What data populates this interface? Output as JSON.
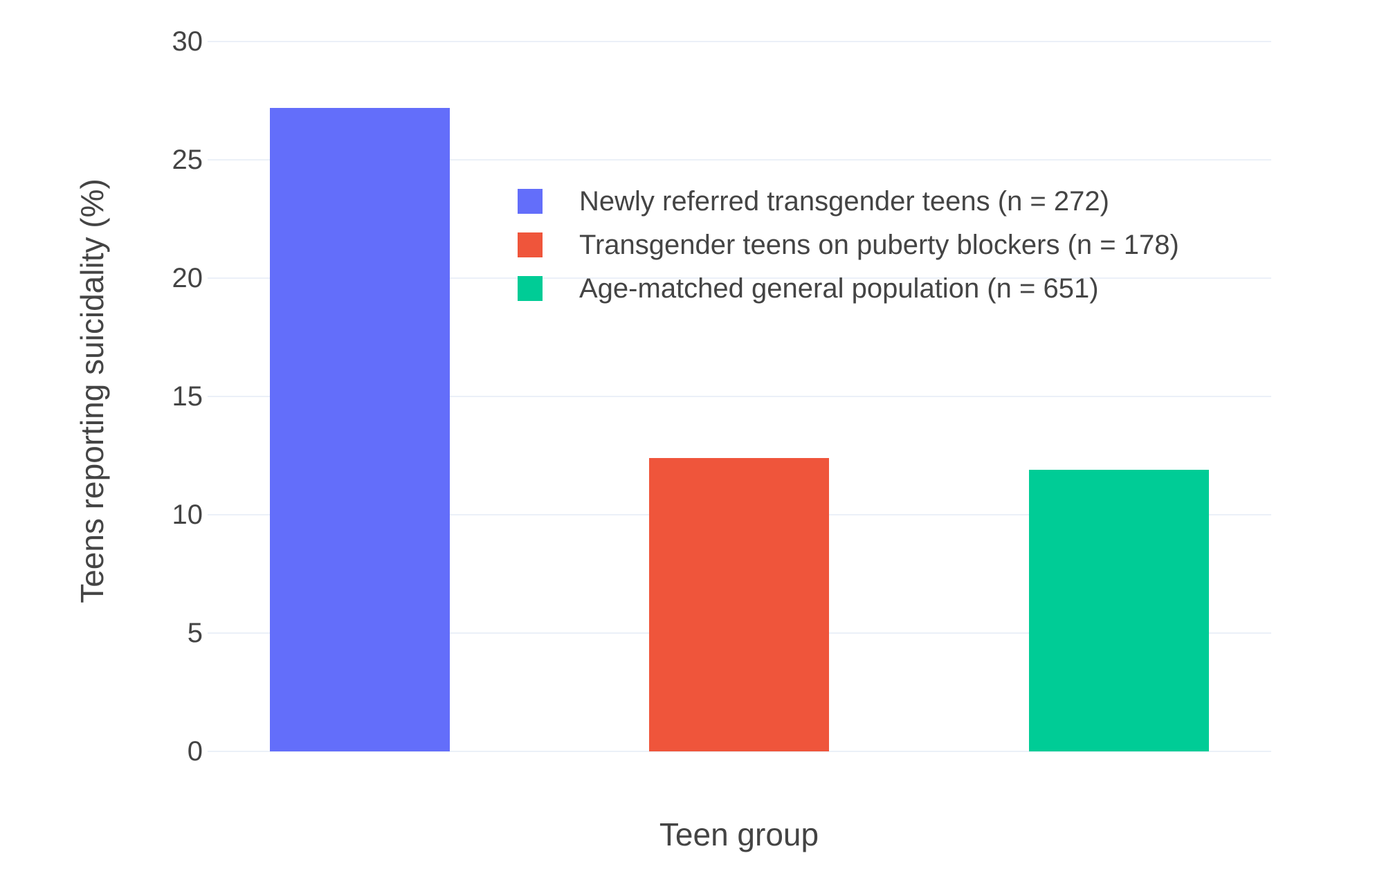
{
  "chart_data": {
    "type": "bar",
    "title": "",
    "xlabel": "Teen group",
    "ylabel": "Teens reporting suicidality (%)",
    "ylim": [
      0,
      30
    ],
    "yticks": [
      0,
      5,
      10,
      15,
      20,
      25,
      30
    ],
    "grid": true,
    "legend_position": "inside-top-center",
    "x_tick_labels_visible": false,
    "categories": [
      "Newly referred transgender teens",
      "Transgender teens on puberty blockers",
      "Age-matched general population"
    ],
    "series": [
      {
        "name": "Newly referred transgender teens (n = 272)",
        "value": 27.2,
        "color": "#636EFA"
      },
      {
        "name": "Transgender teens on puberty blockers (n = 178)",
        "value": 12.4,
        "color": "#EF553B"
      },
      {
        "name": "Age-matched general population (n = 651)",
        "value": 11.9,
        "color": "#00CC96"
      }
    ],
    "colors": {
      "background": "#FFFFFF",
      "grid": "#EBF0F8",
      "text": "#444444"
    }
  }
}
